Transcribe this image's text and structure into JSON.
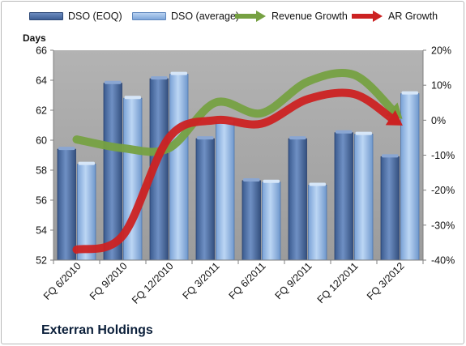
{
  "colors": {
    "dso_eoq": "#4a6a9c",
    "dso_avg": "#8fb3e0",
    "revenue_growth": "#76a142",
    "ar_growth": "#cc2222",
    "plot_bg": "#a6a6a6",
    "company_text": "#0b1f3a"
  },
  "legend": {
    "dso_eoq": "DSO (EOQ)",
    "dso_avg": "DSO (average)",
    "revenue_growth": "Revenue Growth",
    "ar_growth": "AR Growth"
  },
  "y_left_title": "Days",
  "company": "Exterran Holdings",
  "chart_data": {
    "type": "bar",
    "categories": [
      "FQ 6/2010",
      "FQ 9/2010",
      "FQ 12/2010",
      "FQ 3/2011",
      "FQ 6/2011",
      "FQ 9/2011",
      "FQ 12/2011",
      "FQ 3/2012"
    ],
    "series": [
      {
        "name": "DSO (EOQ)",
        "type": "bar",
        "axis": "left",
        "values": [
          59.4,
          63.8,
          64.1,
          60.1,
          57.3,
          60.1,
          60.5,
          58.9
        ]
      },
      {
        "name": "DSO (average)",
        "type": "bar",
        "axis": "left",
        "values": [
          58.4,
          62.8,
          64.4,
          61.2,
          57.2,
          57.0,
          60.4,
          63.1
        ]
      },
      {
        "name": "Revenue Growth",
        "type": "line",
        "axis": "right",
        "values": [
          -5.5,
          -8,
          -8,
          5,
          2,
          11,
          13,
          1
        ]
      },
      {
        "name": "AR Growth",
        "type": "line",
        "axis": "right",
        "values": [
          -37,
          -33,
          -5,
          0,
          -1,
          6,
          7.5,
          -1
        ]
      }
    ],
    "ylim": [
      52,
      66
    ],
    "y_ticks": [
      "52",
      "54",
      "56",
      "58",
      "60",
      "62",
      "64",
      "66"
    ],
    "y2lim": [
      -40,
      20
    ],
    "y2_ticks": [
      "-40%",
      "-30%",
      "-20%",
      "-10%",
      "0%",
      "10%",
      "20%"
    ],
    "ylabel": "Days",
    "grid": false,
    "legend_position": "top"
  }
}
